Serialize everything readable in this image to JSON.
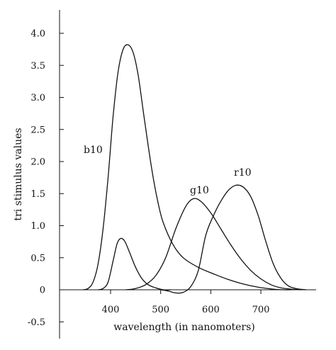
{
  "chart_data": {
    "type": "line",
    "title": "",
    "xlabel": "wavelength (in nanomoters)",
    "ylabel": "tri stimulus values",
    "xlim": [
      300,
      800
    ],
    "ylim": [
      -0.6,
      4.0
    ],
    "x_ticks": [
      400,
      500,
      600,
      700
    ],
    "x_tick_labels": [
      "400",
      "500",
      "600",
      "700"
    ],
    "y_ticks": [
      4.0,
      3.5,
      3.0,
      2.5,
      2.0,
      1.5,
      1.0,
      0.5,
      0,
      -0.5
    ],
    "y_tick_labels": [
      "4.0",
      "3.5",
      "3.0",
      "2.5",
      "2.0",
      "1.5",
      "1.0",
      "0.5",
      "0",
      "-0.5"
    ],
    "grid": false,
    "series": [
      {
        "name": "b10",
        "x": [
          345,
          355,
          365,
          375,
          385,
          395,
          405,
          415,
          425,
          435,
          445,
          455,
          465,
          475,
          485,
          495,
          505,
          525,
          545,
          575,
          605,
          635,
          665,
          695,
          725,
          745,
          760
        ],
        "y": [
          0.0,
          0.02,
          0.12,
          0.4,
          0.95,
          1.75,
          2.7,
          3.4,
          3.75,
          3.82,
          3.7,
          3.35,
          2.8,
          2.25,
          1.75,
          1.35,
          1.05,
          0.7,
          0.5,
          0.35,
          0.25,
          0.16,
          0.09,
          0.04,
          0.01,
          0.0,
          0.0
        ]
      },
      {
        "name": "",
        "x": [
          375,
          385,
          395,
          405,
          413,
          420,
          428,
          438,
          450,
          462,
          475,
          490,
          505,
          520
        ],
        "y": [
          0.0,
          0.02,
          0.12,
          0.45,
          0.72,
          0.8,
          0.76,
          0.58,
          0.35,
          0.18,
          0.08,
          0.03,
          0.0,
          0.0
        ]
      },
      {
        "name": "g10",
        "x": [
          430,
          450,
          470,
          490,
          510,
          530,
          550,
          565,
          580,
          600,
          620,
          640,
          660,
          680,
          700,
          720,
          740,
          760,
          780
        ],
        "y": [
          0.0,
          0.02,
          0.08,
          0.22,
          0.5,
          0.95,
          1.3,
          1.42,
          1.38,
          1.2,
          0.95,
          0.7,
          0.48,
          0.3,
          0.17,
          0.08,
          0.03,
          0.01,
          0.0
        ]
      },
      {
        "name": "r10",
        "x": [
          500,
          515,
          530,
          545,
          560,
          575,
          590,
          605,
          620,
          635,
          650,
          665,
          680,
          695,
          710,
          725,
          740,
          755,
          770,
          790
        ],
        "y": [
          0.0,
          -0.02,
          -0.05,
          -0.04,
          0.05,
          0.3,
          0.85,
          1.15,
          1.38,
          1.55,
          1.63,
          1.6,
          1.45,
          1.15,
          0.75,
          0.4,
          0.18,
          0.06,
          0.02,
          0.0
        ]
      }
    ]
  }
}
